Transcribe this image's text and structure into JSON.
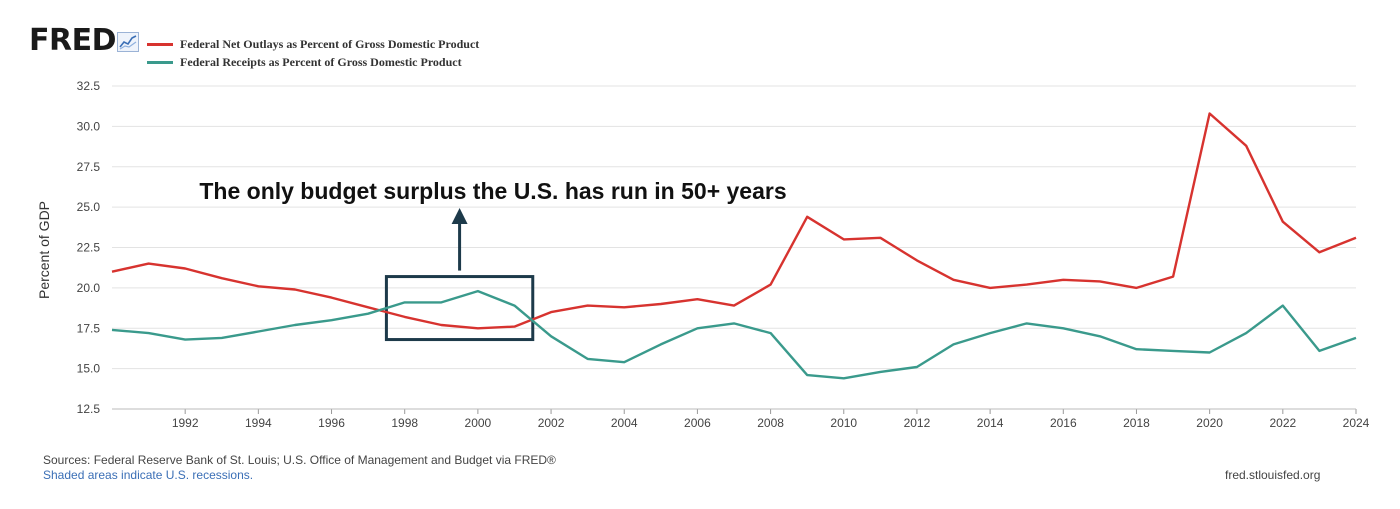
{
  "brand": {
    "logo_text": "FRED",
    "logo_icon": "line-chart-icon"
  },
  "colors": {
    "outlays": "#d7332f",
    "receipts": "#3a9a8c",
    "grid": "#e3e3e3",
    "box": "#1d3a4a"
  },
  "chart_data": {
    "type": "line",
    "title": "",
    "xlabel": "",
    "ylabel": "Percent of GDP",
    "xlim": [
      1990,
      2024
    ],
    "ylim": [
      12.5,
      32.5
    ],
    "grid": true,
    "legend_position": "top-left",
    "x_ticks": [
      "1992",
      "1994",
      "1996",
      "1998",
      "2000",
      "2002",
      "2004",
      "2006",
      "2008",
      "2010",
      "2012",
      "2014",
      "2016",
      "2018",
      "2020",
      "2022",
      "2024"
    ],
    "y_ticks": [
      "12.5",
      "15.0",
      "17.5",
      "20.0",
      "22.5",
      "25.0",
      "27.5",
      "30.0",
      "32.5"
    ],
    "x": [
      1990,
      1991,
      1992,
      1993,
      1994,
      1995,
      1996,
      1997,
      1998,
      1999,
      2000,
      2001,
      2002,
      2003,
      2004,
      2005,
      2006,
      2007,
      2008,
      2009,
      2010,
      2011,
      2012,
      2013,
      2014,
      2015,
      2016,
      2017,
      2018,
      2019,
      2020,
      2021,
      2022,
      2023,
      2024
    ],
    "series": [
      {
        "name": "Federal Net Outlays as Percent of Gross Domestic Product",
        "values": [
          21.0,
          21.5,
          21.2,
          20.6,
          20.1,
          19.9,
          19.4,
          18.8,
          18.2,
          17.7,
          17.5,
          17.6,
          18.5,
          18.9,
          18.8,
          19.0,
          19.3,
          18.9,
          20.2,
          24.4,
          23.0,
          23.1,
          21.7,
          20.5,
          20.0,
          20.2,
          20.5,
          20.4,
          20.0,
          20.7,
          30.8,
          28.8,
          24.1,
          22.2,
          23.1
        ]
      },
      {
        "name": "Federal Receipts as Percent of Gross Domestic Product",
        "values": [
          17.4,
          17.2,
          16.8,
          16.9,
          17.3,
          17.7,
          18.0,
          18.4,
          19.1,
          19.1,
          19.8,
          18.9,
          17.0,
          15.6,
          15.4,
          16.5,
          17.5,
          17.8,
          17.2,
          14.6,
          14.4,
          14.8,
          15.1,
          16.5,
          17.2,
          17.8,
          17.5,
          17.0,
          16.2,
          16.1,
          16.0,
          17.2,
          18.9,
          16.1,
          16.9
        ]
      }
    ],
    "annotation": {
      "text": "The only budget surplus the U.S. has run in 50+ years",
      "box_x_range": [
        1997.5,
        2001.5
      ],
      "box_y_range": [
        16.8,
        20.7
      ]
    }
  },
  "footer": {
    "source": "Sources: Federal Reserve Bank of St. Louis; U.S. Office of Management and Budget via FRED®",
    "recession_note": "Shaded areas indicate U.S. recessions.",
    "site": "fred.stlouisfed.org"
  }
}
